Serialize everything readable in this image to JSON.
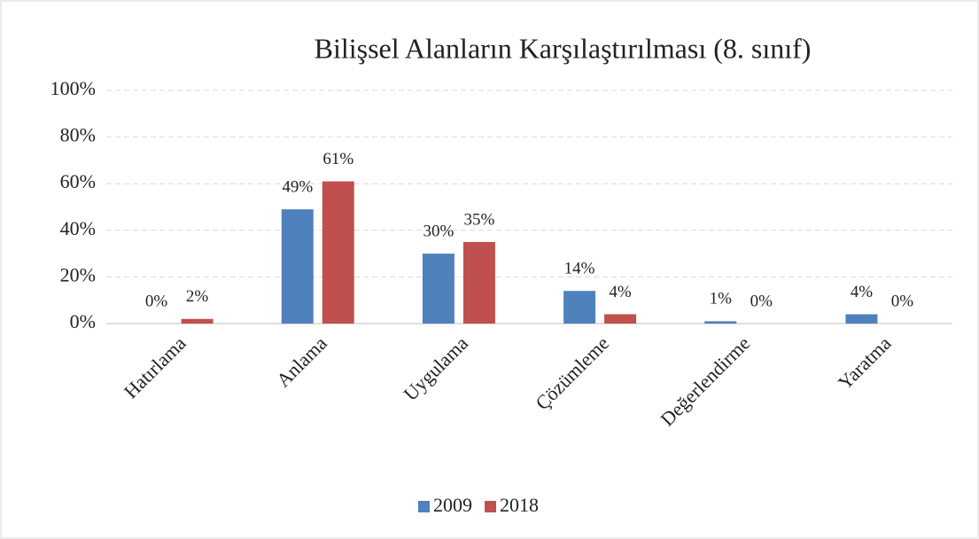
{
  "chart_data": {
    "type": "bar",
    "title": "Bilişsel Alanların Karşılaştırılması (8. sınıf)",
    "categories": [
      "Hatırlama",
      "Anlama",
      "Uygulama",
      "Çözümleme",
      "Değerlendirme",
      "Yaratma"
    ],
    "series": [
      {
        "name": "2009",
        "color": "#4f81bd",
        "values": [
          0,
          49,
          30,
          14,
          1,
          4
        ],
        "value_labels": [
          "0%",
          "49%",
          "30%",
          "14%",
          "1%",
          "4%"
        ]
      },
      {
        "name": "2018",
        "color": "#c0504d",
        "values": [
          2,
          61,
          35,
          4,
          0,
          0
        ],
        "value_labels": [
          "2%",
          "61%",
          "35%",
          "4%",
          "0%",
          "0%"
        ]
      }
    ],
    "ylim": [
      0,
      100
    ],
    "yticks": [
      {
        "value": 0,
        "label": "0%"
      },
      {
        "value": 20,
        "label": "20%"
      },
      {
        "value": 40,
        "label": "40%"
      },
      {
        "value": 60,
        "label": "60%"
      },
      {
        "value": 80,
        "label": "80%"
      },
      {
        "value": 100,
        "label": "100%"
      }
    ],
    "grid": true,
    "legend": "bottom"
  }
}
